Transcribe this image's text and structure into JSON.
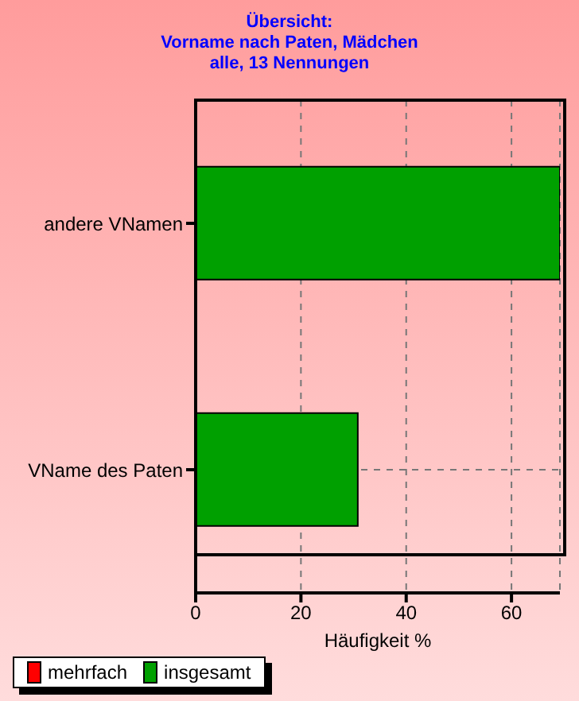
{
  "chart_data": {
    "type": "bar",
    "orientation": "horizontal",
    "title": "Übersicht:\nVorname nach Paten, Mädchen",
    "subtitle": "alle, 13 Nennungen",
    "xlabel": "Häufigkeit %",
    "categories": [
      "andere VNamen",
      "VName des Paten"
    ],
    "series": [
      {
        "name": "mehrfach",
        "color": "#ff0000",
        "values": [
          null,
          null
        ]
      },
      {
        "name": "insgesamt",
        "color": "#00a000",
        "values": [
          69.2,
          30.8
        ]
      }
    ],
    "xlim": [
      0,
      69.2
    ],
    "xticks": [
      0,
      20,
      40,
      60
    ],
    "grid": true,
    "legend": "bottom"
  }
}
